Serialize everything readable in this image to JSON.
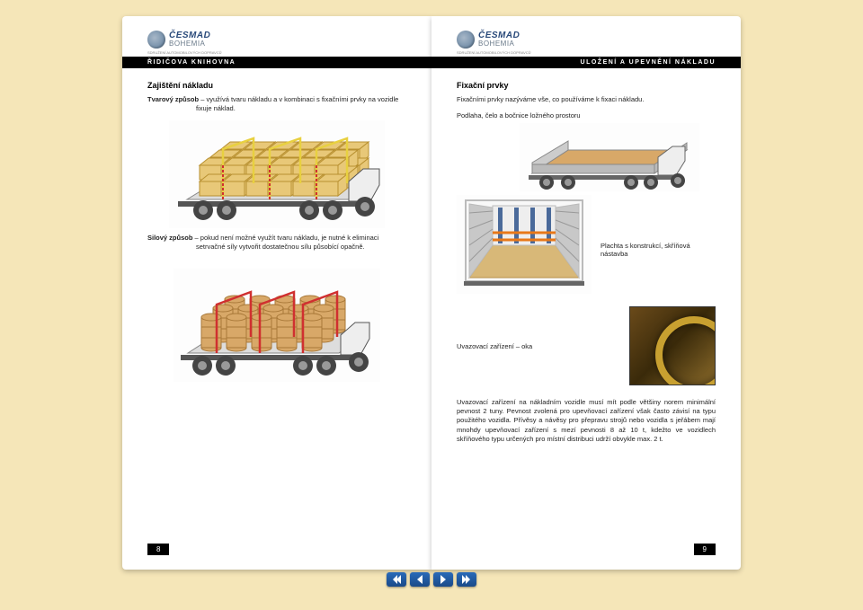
{
  "logo": {
    "main": "ČESMAD",
    "sub": "BOHEMIA",
    "tag": "SDRUŽENÍ AUTOMOBILOVÝCH DOPRAVCŮ"
  },
  "left": {
    "headerBar": "ŘIDIČOVA KNIHOVNA",
    "h1": "Zajištění nákladu",
    "p1_lead": "Tvarový způsob",
    "p1_rest": " – využívá tvaru nákladu a v kombinaci s fixačními prvky na vozidle fixuje náklad.",
    "p2_lead": "Silový způsob",
    "p2_rest": " – pokud není možné využít tvaru nákladu, je nutné k eliminaci setrvačné síly vytvořit dostatečnou sílu působící opačně.",
    "pageNum": "8"
  },
  "right": {
    "headerBar": "ULOŽENÍ A UPEVNĚNÍ NÁKLADU",
    "h1": "Fixační prvky",
    "p1": "Fixačními prvky nazýváme vše, co používáme k fixaci nákladu.",
    "cap1": "Podlaha, čelo a bočnice ložného prostoru",
    "cap2": "Plachta s konstrukcí, skříňová nástavba",
    "cap3": "Uvazovací zařízení – oka",
    "p2": "Uvazovací zařízení na nákladním vozidle musí mít podle většiny norem minimální pevnost 2 tuny. Pevnost zvolená pro upevňovací zařízení však často závisí na typu použitého vozidla. Přívěsy a návěsy pro přepravu strojů nebo vozidla s jeřábem mají mnohdy upevňovací zařízení s mezí pevnosti 8 až 10 t, kdežto ve vozidlech skříňového typu určených pro místní distribuci udrží obvykle max. 2 t.",
    "pageNum": "9"
  },
  "truck1": {
    "body": "#555",
    "wheel": "#444",
    "bed": "#888",
    "box_fill": "#e8c878",
    "box_stroke": "#b89030",
    "strap": "#e8d040",
    "strap_dash": "#d03030"
  },
  "truck2": {
    "body": "#555",
    "wheel": "#444",
    "bed": "#888",
    "barrel_fill": "#d8a868",
    "barrel_stroke": "#a87838",
    "strap": "#d03030"
  },
  "flatbed": {
    "frame": "#888",
    "floor": "#d8a868",
    "wheel": "#444"
  },
  "trailer": {
    "frame": "#bbb",
    "floor": "#d8b878",
    "strut": "#4a6a9a",
    "tarp": "#c8c8c8"
  }
}
